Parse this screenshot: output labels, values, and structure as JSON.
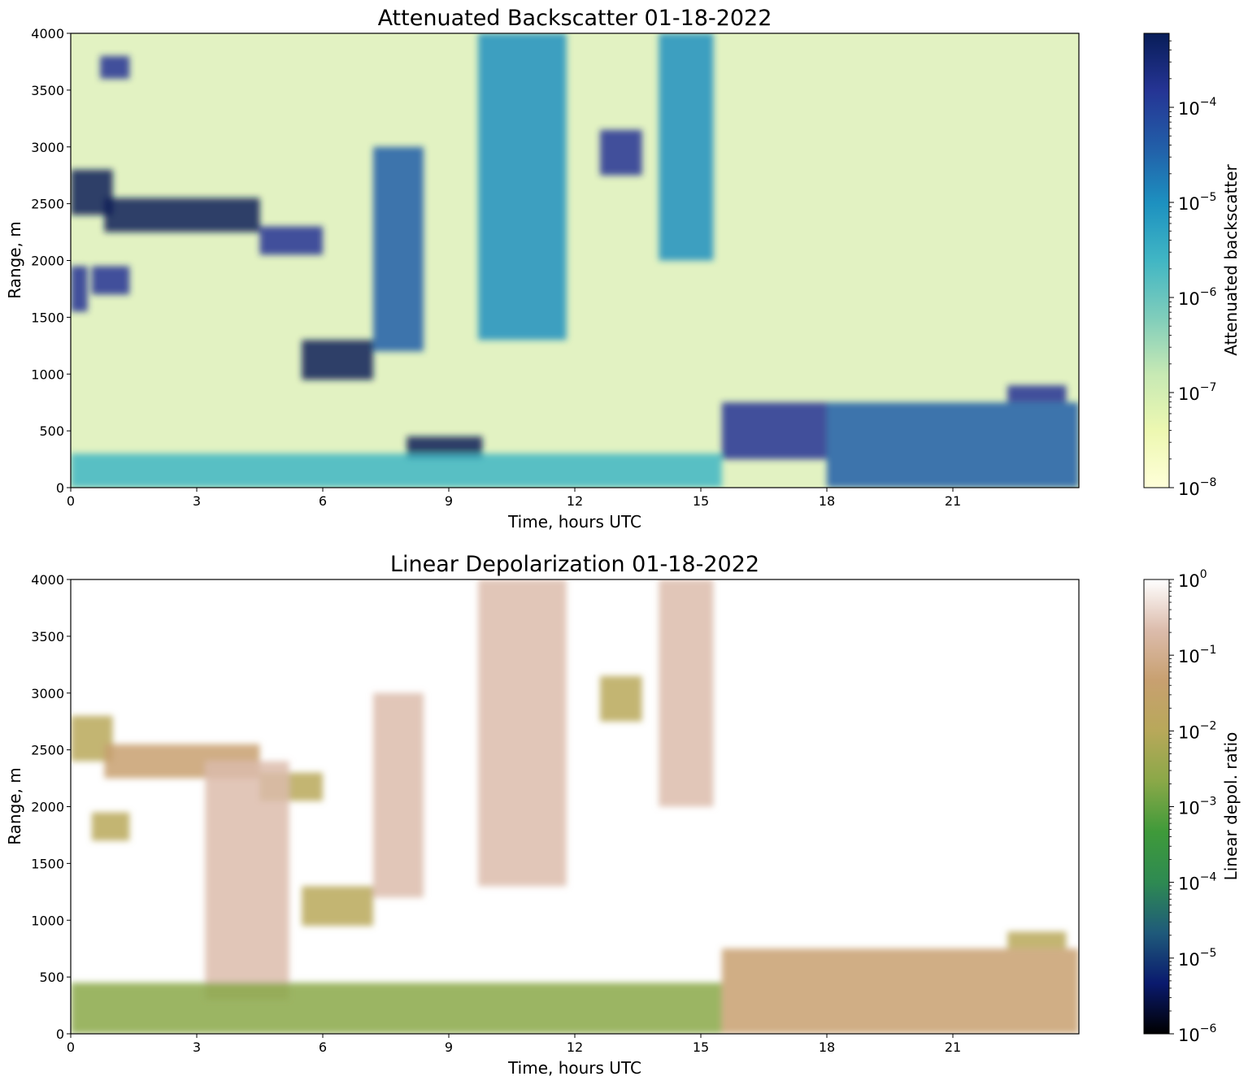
{
  "chart_data": [
    {
      "type": "heatmap",
      "title": "Attenuated Backscatter 01-18-2022",
      "xlabel": "Time, hours UTC",
      "ylabel": "Range, m",
      "xlim": [
        0,
        24
      ],
      "ylim": [
        0,
        4000
      ],
      "xticks": [
        "0",
        "3",
        "6",
        "9",
        "12",
        "15",
        "18",
        "21"
      ],
      "yticks": [
        "0",
        "500",
        "1000",
        "1500",
        "2000",
        "2500",
        "3000",
        "3500",
        "4000"
      ],
      "colorbar": {
        "label": "Attenuated backscatter",
        "scale": "log",
        "range": [
          1e-08,
          0.0006
        ],
        "ticks": [
          {
            "base": "10",
            "exp": "−8"
          },
          {
            "base": "10",
            "exp": "−7"
          },
          {
            "base": "10",
            "exp": "−6"
          },
          {
            "base": "10",
            "exp": "−5"
          },
          {
            "base": "10",
            "exp": "−4"
          }
        ],
        "colors": [
          "#ffffd9",
          "#edf8b1",
          "#c7e9b4",
          "#7fcdbb",
          "#41b6c4",
          "#1d91c0",
          "#225ea8",
          "#253494",
          "#081d58"
        ]
      },
      "features": [
        {
          "x": [
            0.0,
            1.0
          ],
          "y": [
            2400,
            2800
          ],
          "level": 0.95
        },
        {
          "x": [
            0.8,
            4.5
          ],
          "y": [
            2250,
            2550
          ],
          "level": 0.95
        },
        {
          "x": [
            4.5,
            6.0
          ],
          "y": [
            2050,
            2300
          ],
          "level": 0.9
        },
        {
          "x": [
            0.0,
            0.4
          ],
          "y": [
            1550,
            1950
          ],
          "level": 0.85
        },
        {
          "x": [
            0.5,
            1.4
          ],
          "y": [
            1700,
            1950
          ],
          "level": 0.85
        },
        {
          "x": [
            5.5,
            7.2
          ],
          "y": [
            950,
            1300
          ],
          "level": 0.95
        },
        {
          "x": [
            7.2,
            8.4
          ],
          "y": [
            1200,
            3000
          ],
          "level": 0.72
        },
        {
          "x": [
            9.7,
            11.8
          ],
          "y": [
            1300,
            4000
          ],
          "level": 0.68
        },
        {
          "x": [
            12.6,
            13.6
          ],
          "y": [
            2750,
            3150
          ],
          "level": 0.92
        },
        {
          "x": [
            14.0,
            15.3
          ],
          "y": [
            2000,
            4000
          ],
          "level": 0.65
        },
        {
          "x": [
            8.0,
            9.8
          ],
          "y": [
            250,
            450
          ],
          "level": 0.95
        },
        {
          "x": [
            15.5,
            18.0
          ],
          "y": [
            250,
            750
          ],
          "level": 0.85
        },
        {
          "x": [
            18.0,
            24.0
          ],
          "y": [
            0,
            750
          ],
          "level": 0.8
        },
        {
          "x": [
            22.3,
            23.7
          ],
          "y": [
            750,
            900
          ],
          "level": 0.85
        },
        {
          "x": [
            0.0,
            15.5
          ],
          "y": [
            0,
            300
          ],
          "level": 0.55
        },
        {
          "x": [
            0.7,
            1.4
          ],
          "y": [
            3600,
            3800
          ],
          "level": 0.85
        }
      ]
    },
    {
      "type": "heatmap",
      "title": "Linear Depolarization 01-18-2022",
      "xlabel": "Time, hours UTC",
      "ylabel": "Range, m",
      "xlim": [
        0,
        24
      ],
      "ylim": [
        0,
        4000
      ],
      "xticks": [
        "0",
        "3",
        "6",
        "9",
        "12",
        "15",
        "18",
        "21"
      ],
      "yticks": [
        "0",
        "500",
        "1000",
        "1500",
        "2000",
        "2500",
        "3000",
        "3500",
        "4000"
      ],
      "colorbar": {
        "label": "Linear depol. ratio",
        "scale": "log",
        "range": [
          1e-06,
          1
        ],
        "ticks": [
          {
            "base": "10",
            "exp": "−6"
          },
          {
            "base": "10",
            "exp": "−5"
          },
          {
            "base": "10",
            "exp": "−4"
          },
          {
            "base": "10",
            "exp": "−3"
          },
          {
            "base": "10",
            "exp": "−2"
          },
          {
            "base": "10",
            "exp": "−1"
          },
          {
            "base": "10",
            "exp": "0"
          }
        ],
        "colors": [
          "#000000",
          "#0a1a6e",
          "#1f5a7a",
          "#2e8a52",
          "#3f9a3a",
          "#8aa848",
          "#b8a85a",
          "#c8a070",
          "#dcbcac",
          "#ffffff"
        ]
      },
      "features": [
        {
          "x": [
            0.0,
            1.0
          ],
          "y": [
            2400,
            2800
          ],
          "level": 0.68
        },
        {
          "x": [
            0.8,
            4.5
          ],
          "y": [
            2250,
            2550
          ],
          "level": 0.82
        },
        {
          "x": [
            4.5,
            6.0
          ],
          "y": [
            2050,
            2300
          ],
          "level": 0.68
        },
        {
          "x": [
            0.5,
            1.4
          ],
          "y": [
            1700,
            1950
          ],
          "level": 0.7
        },
        {
          "x": [
            5.5,
            7.2
          ],
          "y": [
            950,
            1300
          ],
          "level": 0.7
        },
        {
          "x": [
            3.2,
            5.2
          ],
          "y": [
            300,
            2400
          ],
          "level": 0.9
        },
        {
          "x": [
            7.2,
            8.4
          ],
          "y": [
            1200,
            3000
          ],
          "level": 0.88
        },
        {
          "x": [
            9.7,
            11.8
          ],
          "y": [
            1300,
            4000
          ],
          "level": 0.88
        },
        {
          "x": [
            12.6,
            13.6
          ],
          "y": [
            2750,
            3150
          ],
          "level": 0.68
        },
        {
          "x": [
            14.0,
            15.3
          ],
          "y": [
            2000,
            4000
          ],
          "level": 0.88
        },
        {
          "x": [
            0.0,
            15.5
          ],
          "y": [
            0,
            450
          ],
          "level": 0.55
        },
        {
          "x": [
            15.5,
            18.0
          ],
          "y": [
            0,
            750
          ],
          "level": 0.8
        },
        {
          "x": [
            18.0,
            24.0
          ],
          "y": [
            0,
            750
          ],
          "level": 0.82
        },
        {
          "x": [
            22.3,
            23.7
          ],
          "y": [
            750,
            900
          ],
          "level": 0.68
        }
      ]
    }
  ]
}
